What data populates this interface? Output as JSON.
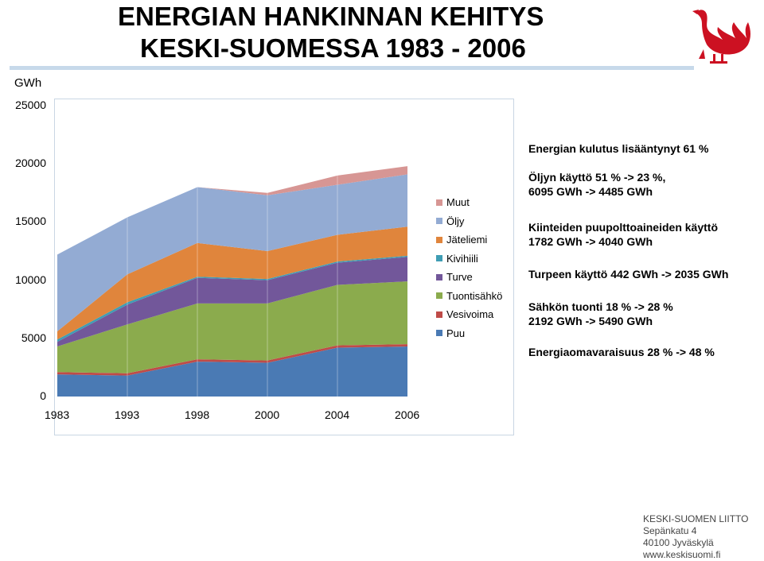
{
  "title": {
    "line1": "ENERGIAN HANKINNAN KEHITYS",
    "line2": "KESKI-SUOMESSA 1983 - 2006"
  },
  "logo": {
    "icon": "capercaillie-crest-icon",
    "color": "#cc1122"
  },
  "chart_data": {
    "type": "area",
    "ylabel": "GWh",
    "ylim": [
      0,
      25000
    ],
    "yticks": [
      "25000",
      "20000",
      "15000",
      "10000",
      "5000",
      "0"
    ],
    "categories": [
      "1983",
      "1993",
      "1998",
      "2000",
      "2004",
      "2006"
    ],
    "series": [
      {
        "name": "Puu",
        "color": "#4a7ab4",
        "values": [
          1900,
          1800,
          3000,
          2900,
          4200,
          4300
        ]
      },
      {
        "name": "Vesivoima",
        "color": "#bf4b48",
        "values": [
          200,
          200,
          200,
          200,
          200,
          200
        ]
      },
      {
        "name": "Tuontisähkö",
        "color": "#8bab4d",
        "values": [
          2200,
          4200,
          4800,
          4900,
          5200,
          5400
        ]
      },
      {
        "name": "Turve",
        "color": "#72579a",
        "values": [
          400,
          1700,
          2200,
          2000,
          1900,
          2100
        ]
      },
      {
        "name": "Kivihiili",
        "color": "#3f9db4",
        "values": [
          200,
          200,
          100,
          100,
          100,
          100
        ]
      },
      {
        "name": "Jäteliemi",
        "color": "#e0853c",
        "values": [
          700,
          2400,
          2900,
          2400,
          2300,
          2500
        ]
      },
      {
        "name": "Öljy",
        "color": "#93abd3",
        "values": [
          6600,
          4900,
          4800,
          4800,
          4300,
          4500
        ]
      },
      {
        "name": "Muut",
        "color": "#d79694",
        "values": [
          0,
          0,
          0,
          200,
          800,
          700
        ]
      }
    ],
    "legend_position": "right"
  },
  "notes": [
    [
      "Energian kulutus lisääntynyt 61 %"
    ],
    [
      "Öljyn käyttö 51 % -> 23 %,",
      " 6095 GWh -> 4485 GWh"
    ],
    [
      "Kiinteiden puupolttoaineiden käyttö",
      "1782 GWh -> 4040 GWh"
    ],
    [
      "Turpeen käyttö 442 GWh -> 2035 GWh"
    ],
    [
      "Sähkön tuonti 18 % -> 28 %",
      " 2192 GWh -> 5490 GWh"
    ],
    [
      "Energiaomavaraisuus 28 % -> 48 %"
    ]
  ],
  "footer": [
    "KESKI-SUOMEN LIITTO",
    "Sepänkatu 4",
    "40100 Jyväskylä",
    "www.keskisuomi.fi"
  ]
}
